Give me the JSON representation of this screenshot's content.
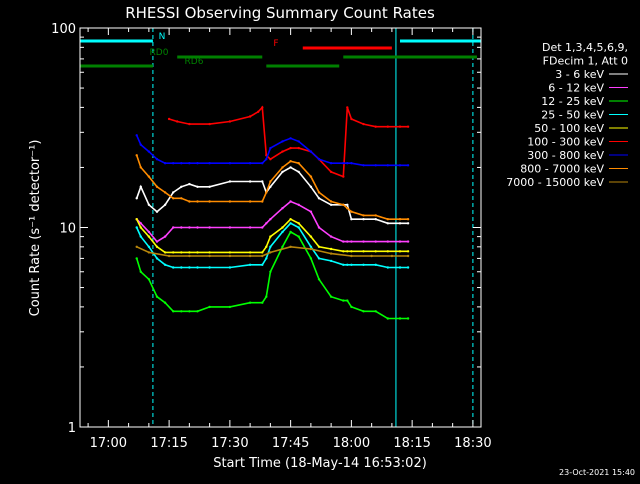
{
  "chart_data": {
    "type": "line",
    "title": "RHESSI Observing Summary Count Rates",
    "xlabel": "Start Time (18-May-14 16:53:02)",
    "ylabel": "Count Rate (s⁻¹ detector⁻¹)",
    "y_scale": "log",
    "ylim": [
      1,
      100
    ],
    "y_ticks": [
      {
        "value": 1,
        "label": "1"
      },
      {
        "value": 10,
        "label": "10"
      },
      {
        "value": 100,
        "label": "100"
      }
    ],
    "xlim": [
      "16:53",
      "18:32"
    ],
    "x_ticks": [
      {
        "time": "17:00",
        "label": "17:00"
      },
      {
        "time": "17:15",
        "label": "17:15"
      },
      {
        "time": "17:30",
        "label": "17:30"
      },
      {
        "time": "17:45",
        "label": "17:45"
      },
      {
        "time": "18:00",
        "label": "18:00"
      },
      {
        "time": "18:15",
        "label": "18:15"
      },
      {
        "time": "18:30",
        "label": "18:30"
      }
    ],
    "grid": false,
    "legend_position": "right",
    "legend_header": [
      "Det 1,3,4,5,6,9,",
      "FDecim 1, Att 0"
    ],
    "footer_date": "23-Oct-2021 15:40",
    "series": [
      {
        "name": "3 - 6 keV",
        "color": "#ffffff",
        "x": [
          "17:07",
          "17:08",
          "17:10",
          "17:12",
          "17:14",
          "17:16",
          "17:18",
          "17:20",
          "17:22",
          "17:25",
          "17:30",
          "17:35",
          "17:38",
          "17:39",
          "17:40",
          "17:43",
          "17:45",
          "17:47",
          "17:50",
          "17:52",
          "17:55",
          "17:58",
          "17:59",
          "18:00",
          "18:03",
          "18:06",
          "18:09",
          "18:12",
          "18:14"
        ],
        "values": [
          14,
          16,
          13,
          12,
          13,
          15,
          16,
          16.5,
          16,
          16,
          17,
          17,
          17,
          15,
          16,
          19,
          20,
          19,
          16,
          14,
          13,
          13,
          13,
          11,
          11,
          11,
          10.5,
          10.5,
          10.5
        ]
      },
      {
        "name": "6 - 12 keV",
        "color": "#ff40ff",
        "x": [
          "17:07",
          "17:08",
          "17:10",
          "17:12",
          "17:14",
          "17:16",
          "17:18",
          "17:20",
          "17:22",
          "17:25",
          "17:30",
          "17:35",
          "17:38",
          "17:39",
          "17:40",
          "17:43",
          "17:45",
          "17:47",
          "17:50",
          "17:52",
          "17:55",
          "17:58",
          "17:59",
          "18:00",
          "18:03",
          "18:06",
          "18:09",
          "18:12",
          "18:14"
        ],
        "values": [
          11,
          10.5,
          9.5,
          8.5,
          9,
          10,
          10,
          10,
          10,
          10,
          10,
          10,
          10,
          10.5,
          11,
          12.5,
          13.5,
          13,
          12,
          10,
          9,
          8.5,
          8.5,
          8.5,
          8.5,
          8.5,
          8.5,
          8.5,
          8.5
        ]
      },
      {
        "name": "12 - 25 keV",
        "color": "#00ff00",
        "x": [
          "17:07",
          "17:08",
          "17:10",
          "17:12",
          "17:14",
          "17:16",
          "17:18",
          "17:20",
          "17:22",
          "17:25",
          "17:30",
          "17:35",
          "17:38",
          "17:39",
          "17:40",
          "17:43",
          "17:45",
          "17:47",
          "17:50",
          "17:52",
          "17:55",
          "17:58",
          "17:59",
          "18:00",
          "18:03",
          "18:06",
          "18:09",
          "18:12",
          "18:14"
        ],
        "values": [
          7,
          6,
          5.5,
          4.5,
          4.2,
          3.8,
          3.8,
          3.8,
          3.8,
          4,
          4,
          4.2,
          4.2,
          4.5,
          6,
          8,
          9.5,
          9,
          7,
          5.5,
          4.5,
          4.3,
          4.3,
          4,
          3.8,
          3.8,
          3.5,
          3.5,
          3.5
        ]
      },
      {
        "name": "25 - 50 keV",
        "color": "#00ffff",
        "x": [
          "17:07",
          "17:08",
          "17:10",
          "17:12",
          "17:14",
          "17:16",
          "17:18",
          "17:20",
          "17:22",
          "17:25",
          "17:30",
          "17:35",
          "17:38",
          "17:39",
          "17:40",
          "17:43",
          "17:45",
          "17:47",
          "17:50",
          "17:52",
          "17:55",
          "17:58",
          "17:59",
          "18:00",
          "18:03",
          "18:06",
          "18:09",
          "18:12",
          "18:14"
        ],
        "values": [
          10,
          9,
          8,
          7,
          6.5,
          6.3,
          6.3,
          6.3,
          6.3,
          6.3,
          6.3,
          6.5,
          6.5,
          7,
          8,
          9.5,
          10.5,
          10,
          8,
          7,
          6.8,
          6.5,
          6.5,
          6.5,
          6.5,
          6.5,
          6.3,
          6.3,
          6.3
        ]
      },
      {
        "name": "50 - 100 keV",
        "color": "#ffff00",
        "x": [
          "17:07",
          "17:08",
          "17:10",
          "17:12",
          "17:14",
          "17:16",
          "17:18",
          "17:20",
          "17:22",
          "17:25",
          "17:30",
          "17:35",
          "17:38",
          "17:39",
          "17:40",
          "17:43",
          "17:45",
          "17:47",
          "17:50",
          "17:52",
          "17:55",
          "17:58",
          "17:59",
          "18:00",
          "18:03",
          "18:06",
          "18:09",
          "18:12",
          "18:14"
        ],
        "values": [
          11,
          10,
          9,
          8,
          7.5,
          7.5,
          7.5,
          7.5,
          7.5,
          7.5,
          7.5,
          7.5,
          7.5,
          8,
          9,
          10,
          11,
          10.5,
          9,
          8,
          7.8,
          7.6,
          7.6,
          7.6,
          7.6,
          7.6,
          7.6,
          7.6,
          7.6
        ]
      },
      {
        "name": "100 - 300 keV",
        "color": "#ff0000",
        "x": [
          "17:15",
          "17:17",
          "17:20",
          "17:25",
          "17:30",
          "17:35",
          "17:37",
          "17:38",
          "17:39",
          "17:40",
          "17:43",
          "17:45",
          "17:47",
          "17:50",
          "17:52",
          "17:55",
          "17:58",
          "17:59",
          "18:00",
          "18:03",
          "18:06",
          "18:09",
          "18:12",
          "18:14"
        ],
        "values": [
          35,
          34,
          33,
          33,
          34,
          36,
          38,
          40,
          23,
          22,
          24,
          25,
          25,
          24,
          22,
          19,
          18,
          40,
          35,
          33,
          32,
          32,
          32,
          32
        ]
      },
      {
        "name": "300 - 800 keV",
        "color": "#0000ff",
        "x": [
          "17:07",
          "17:08",
          "17:10",
          "17:12",
          "17:14",
          "17:16",
          "17:18",
          "17:20",
          "17:22",
          "17:25",
          "17:30",
          "17:35",
          "17:38",
          "17:39",
          "17:40",
          "17:43",
          "17:45",
          "17:47",
          "17:50",
          "17:52",
          "17:55",
          "17:58",
          "17:59",
          "18:00",
          "18:03",
          "18:06",
          "18:09",
          "18:12",
          "18:14"
        ],
        "values": [
          29,
          26,
          24,
          22,
          21,
          21,
          21,
          21,
          21,
          21,
          21,
          21,
          21,
          22,
          25,
          27,
          28,
          27,
          24,
          22,
          21,
          21,
          21,
          21,
          20.5,
          20.5,
          20.5,
          20.5,
          20.5
        ]
      },
      {
        "name": "800 - 7000 keV",
        "color": "#ff8c00",
        "x": [
          "17:07",
          "17:08",
          "17:10",
          "17:12",
          "17:14",
          "17:16",
          "17:18",
          "17:20",
          "17:22",
          "17:25",
          "17:30",
          "17:35",
          "17:38",
          "17:39",
          "17:40",
          "17:43",
          "17:45",
          "17:47",
          "17:50",
          "17:52",
          "17:55",
          "17:58",
          "17:59",
          "18:00",
          "18:03",
          "18:06",
          "18:09",
          "18:12",
          "18:14"
        ],
        "values": [
          23,
          20,
          18,
          16,
          15,
          14,
          14,
          13.5,
          13.5,
          13.5,
          13.5,
          13.5,
          13.5,
          15,
          17,
          20,
          21.5,
          21,
          18,
          15,
          13.5,
          13,
          12.5,
          12,
          11.5,
          11.5,
          11,
          11,
          11
        ]
      },
      {
        "name": "7000 - 15000 keV",
        "color": "#b8860b",
        "x": [
          "17:07",
          "17:10",
          "17:15",
          "17:20",
          "17:25",
          "17:30",
          "17:35",
          "17:38",
          "17:40",
          "17:45",
          "17:50",
          "17:55",
          "18:00",
          "18:05",
          "18:10",
          "18:14"
        ],
        "values": [
          8,
          7.5,
          7.2,
          7.2,
          7.2,
          7.2,
          7.2,
          7.2,
          7.5,
          8,
          7.8,
          7.4,
          7.2,
          7.2,
          7.2,
          7.2
        ]
      }
    ],
    "annotations": {
      "bars": [
        {
          "label": "N",
          "color": "#00ffff",
          "segments": [
            [
              "16:53",
              "17:11"
            ],
            [
              "18:12",
              "18:32"
            ]
          ]
        },
        {
          "label": "F",
          "color": "#ff0000",
          "segments": [
            [
              "17:48",
              "18:10"
            ]
          ]
        },
        {
          "label": "RD0",
          "color": "#008000",
          "segments": [
            [
              "17:17",
              "17:38"
            ],
            [
              "17:58",
              "18:31"
            ]
          ]
        },
        {
          "label": "RD6",
          "color": "#008000",
          "segments": [
            [
              "16:53",
              "17:11"
            ],
            [
              "17:39",
              "17:57"
            ]
          ]
        }
      ],
      "vertical_lines": [
        {
          "time": "17:11",
          "color": "#00ffff",
          "style": "dashed"
        },
        {
          "time": "18:11",
          "color": "#00ffff",
          "style": "solid"
        },
        {
          "time": "18:30",
          "color": "#00ffff",
          "style": "dashed"
        }
      ]
    }
  }
}
